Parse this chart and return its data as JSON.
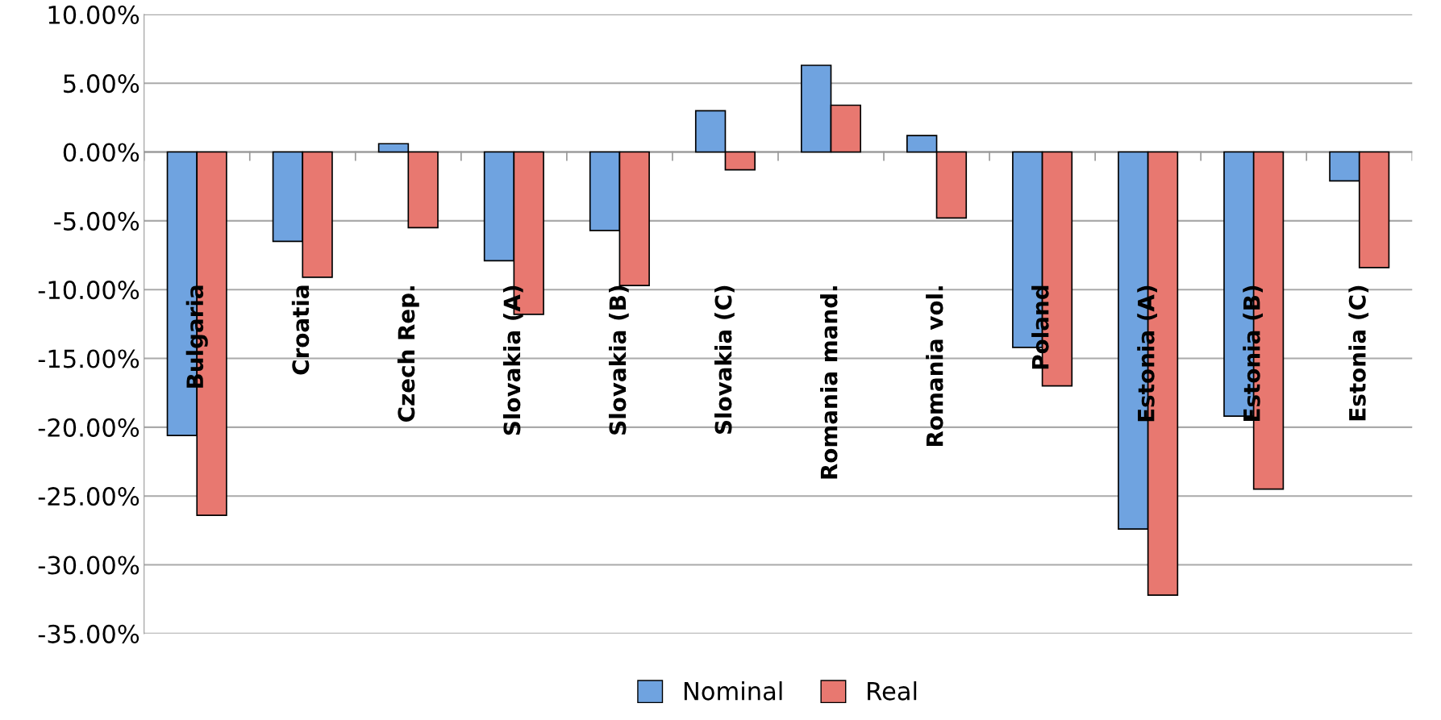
{
  "chart_data": {
    "type": "bar",
    "categories": [
      "Bulgaria",
      "Croatia",
      "Czech Rep.",
      "Slovakia (A)",
      "Slovakia (B)",
      "Slovakia (C)",
      "Romania mand.",
      "Romania vol.",
      "Poland",
      "Estonia (A)",
      "Estonia (B)",
      "Estonia (C)"
    ],
    "series": [
      {
        "name": "Nominal",
        "color": "#6fa3e0",
        "values": [
          -20.6,
          -6.5,
          0.6,
          -7.9,
          -5.7,
          3.0,
          6.3,
          1.2,
          -14.2,
          -27.4,
          -19.2,
          -2.1
        ]
      },
      {
        "name": "Real",
        "color": "#e87870",
        "values": [
          -26.4,
          -9.1,
          -5.5,
          -11.8,
          -9.7,
          -1.3,
          3.4,
          -4.8,
          -17.0,
          -32.2,
          -24.5,
          -8.4
        ]
      }
    ],
    "ylim": [
      -35,
      10
    ],
    "yticks": [
      {
        "value": -35,
        "label": "-35.00%"
      },
      {
        "value": -30,
        "label": "-30.00%"
      },
      {
        "value": -25,
        "label": "-25.00%"
      },
      {
        "value": -20,
        "label": "-20.00%"
      },
      {
        "value": -15,
        "label": "-15.00%"
      },
      {
        "value": -10,
        "label": "-10.00%"
      },
      {
        "value": -5,
        "label": "-5.00%"
      },
      {
        "value": 0,
        "label": "0.00%"
      },
      {
        "value": 5,
        "label": "5.00%"
      },
      {
        "value": 10,
        "label": "10.00%"
      }
    ],
    "grid": "y",
    "legend": "bottom"
  }
}
